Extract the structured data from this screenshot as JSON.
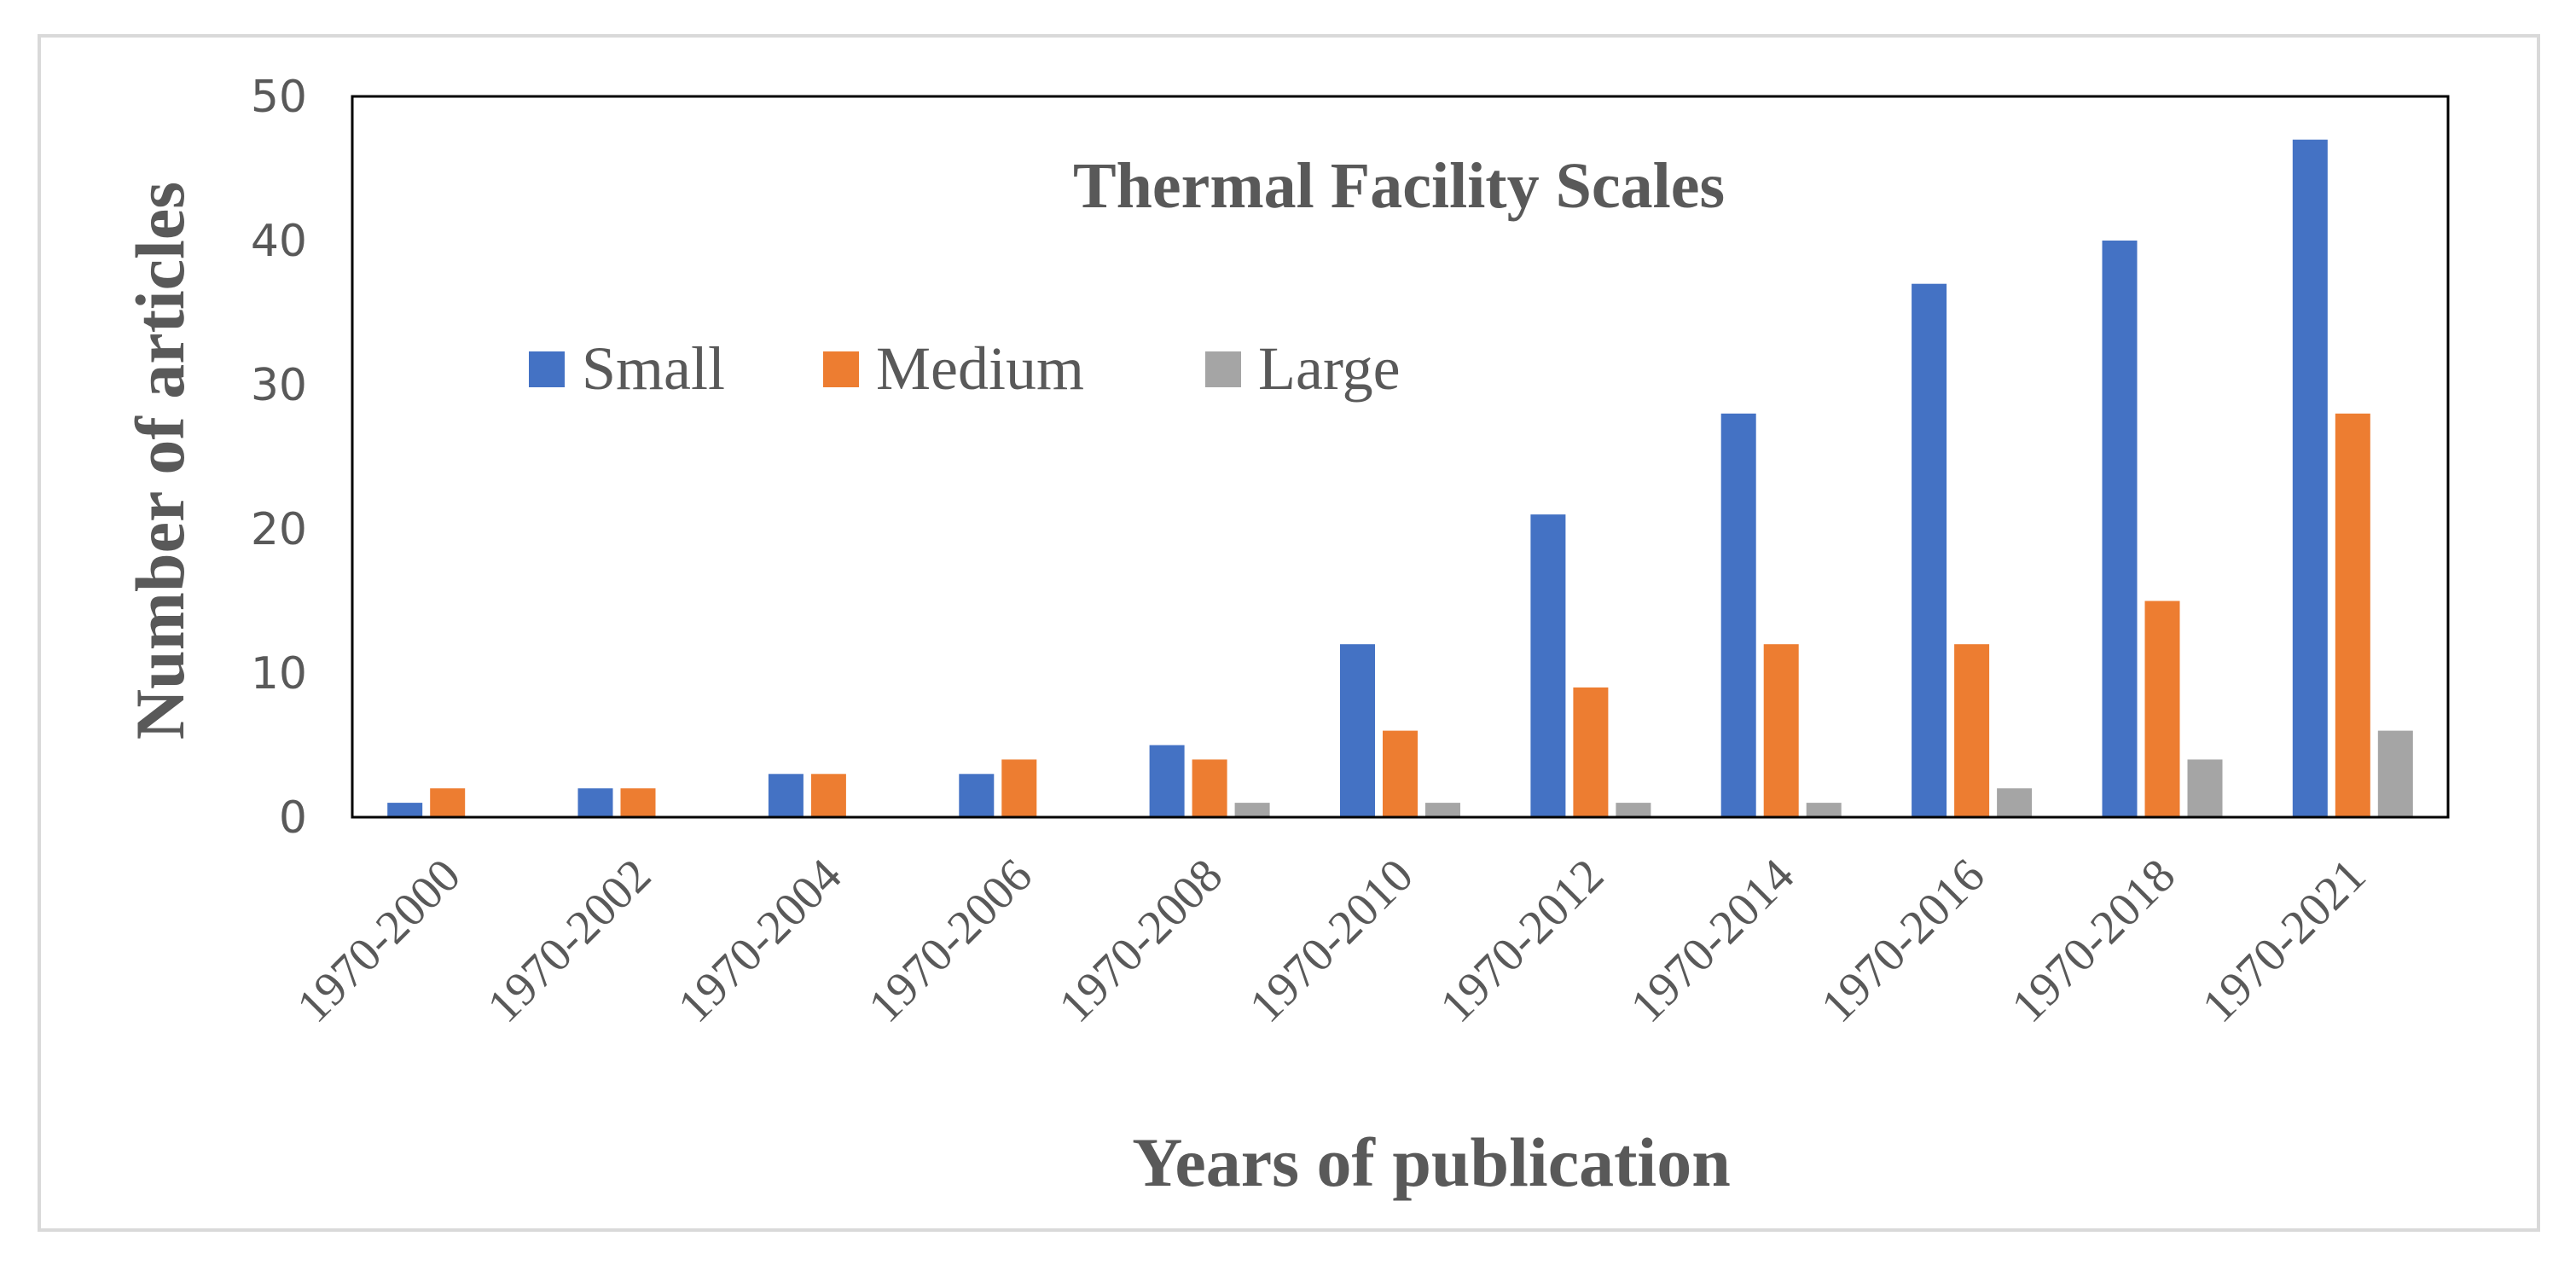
{
  "chart_data": {
    "type": "bar",
    "title": "Thermal Facility Scales",
    "xlabel": "Years of publication",
    "ylabel": "Number of articles",
    "ylim": [
      0,
      50
    ],
    "yticks": [
      0,
      10,
      20,
      30,
      40,
      50
    ],
    "grid": false,
    "legend_position": "top-left inside plot",
    "categories": [
      "1970-2000",
      "1970-2002",
      "1970-2004",
      "1970-2006",
      "1970-2008",
      "1970-2010",
      "1970-2012",
      "1970-2014",
      "1970-2016",
      "1970-2018",
      "1970-2021"
    ],
    "series": [
      {
        "name": "Small",
        "color": "#4472C4",
        "values": [
          1,
          2,
          3,
          3,
          5,
          12,
          21,
          28,
          37,
          40,
          47
        ]
      },
      {
        "name": "Medium",
        "color": "#ED7D31",
        "values": [
          2,
          2,
          3,
          4,
          4,
          6,
          9,
          12,
          12,
          15,
          28
        ]
      },
      {
        "name": "Large",
        "color": "#A5A5A5",
        "values": [
          0,
          0,
          0,
          0,
          1,
          1,
          1,
          1,
          2,
          4,
          6
        ]
      }
    ]
  }
}
